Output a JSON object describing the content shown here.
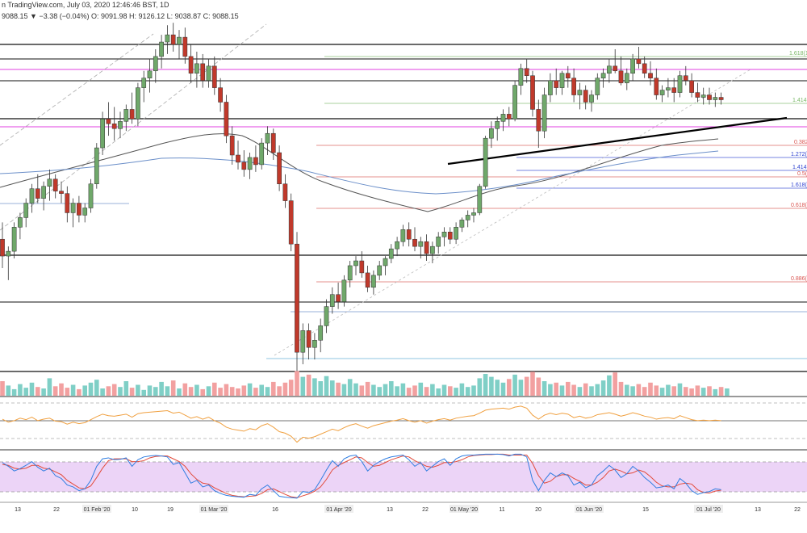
{
  "header": {
    "source_text": "n TradingView.com, July 03, 2020 12:46:46 BST",
    "interval": ", 1D",
    "ohlc_text": "9088.15 ",
    "change_text": "▼ −3.38 (−0.04%)",
    "o_text": " O: 9091.98",
    "h_text": " H: 9126.12",
    "l_text": " L: 9038.87",
    "c_text": " C: 9088.15"
  },
  "colors": {
    "up": "#6fa86a",
    "down": "#c0392b",
    "vol_up": "#7fcfc6",
    "vol_down": "#f2a0a0",
    "black_line": "#111111",
    "magenta_line": "#e040e0",
    "fib_red": "#d9534f",
    "fib_blue": "#2b3fcf",
    "fib_green": "#7ab867",
    "sma_gray": "#555555",
    "sma_blue": "#6b8fc9",
    "rsi": "#f0a040",
    "stoch_k": "#2f7de1",
    "stoch_d": "#e24b3b",
    "stoch_band": "#e7c9f5"
  },
  "chart_data": [
    {
      "type": "candlestick",
      "title": "",
      "x_labels": [
        "13",
        "22",
        "01 Feb '20",
        "10",
        "19",
        "01 Mar '20",
        "16",
        "01 Apr '20",
        "13",
        "22",
        "01 May '20",
        "11",
        "20",
        "01 Jun '20",
        "15",
        "01 Jul '20",
        "13",
        "22"
      ],
      "fib_labels_upper": [
        "1.618(1",
        "1.414("
      ],
      "fib_labels_right": [
        "0.382(",
        "1.272(",
        "1.414(",
        "0.5(",
        "1.618(",
        "0.618(",
        "0.886("
      ],
      "candles": [
        [
          0.55,
          0.62,
          0.43,
          0.48
        ],
        [
          0.48,
          0.52,
          0.38,
          0.5
        ],
        [
          0.5,
          0.62,
          0.47,
          0.6
        ],
        [
          0.6,
          0.66,
          0.55,
          0.64
        ],
        [
          0.64,
          0.72,
          0.6,
          0.7
        ],
        [
          0.7,
          0.78,
          0.66,
          0.76
        ],
        [
          0.76,
          0.82,
          0.7,
          0.72
        ],
        [
          0.72,
          0.79,
          0.67,
          0.77
        ],
        [
          0.77,
          0.84,
          0.71,
          0.8
        ],
        [
          0.8,
          0.82,
          0.72,
          0.75
        ],
        [
          0.75,
          0.79,
          0.7,
          0.74
        ],
        [
          0.74,
          0.77,
          0.62,
          0.66
        ],
        [
          0.66,
          0.72,
          0.6,
          0.7
        ],
        [
          0.7,
          0.73,
          0.62,
          0.65
        ],
        [
          0.65,
          0.7,
          0.62,
          0.68
        ],
        [
          0.68,
          0.8,
          0.66,
          0.78
        ],
        [
          0.78,
          0.95,
          0.76,
          0.93
        ],
        [
          0.93,
          1.08,
          0.9,
          1.05
        ],
        [
          1.05,
          1.12,
          0.98,
          1.03
        ],
        [
          1.03,
          1.1,
          0.96,
          1.01
        ],
        [
          1.01,
          1.08,
          0.97,
          1.04
        ],
        [
          1.04,
          1.11,
          1.0,
          1.09
        ],
        [
          1.09,
          1.16,
          1.03,
          1.05
        ],
        [
          1.05,
          1.2,
          1.02,
          1.18
        ],
        [
          1.18,
          1.25,
          1.12,
          1.22
        ],
        [
          1.22,
          1.3,
          1.16,
          1.25
        ],
        [
          1.25,
          1.34,
          1.2,
          1.31
        ],
        [
          1.31,
          1.4,
          1.26,
          1.37
        ],
        [
          1.37,
          1.44,
          1.32,
          1.4
        ],
        [
          1.4,
          1.45,
          1.33,
          1.36
        ],
        [
          1.36,
          1.42,
          1.3,
          1.39
        ],
        [
          1.39,
          1.43,
          1.28,
          1.31
        ],
        [
          1.31,
          1.36,
          1.2,
          1.24
        ],
        [
          1.24,
          1.33,
          1.18,
          1.28
        ],
        [
          1.28,
          1.32,
          1.18,
          1.21
        ],
        [
          1.21,
          1.3,
          1.18,
          1.27
        ],
        [
          1.27,
          1.31,
          1.15,
          1.18
        ],
        [
          1.18,
          1.22,
          1.08,
          1.12
        ],
        [
          1.12,
          1.15,
          0.95,
          0.98
        ],
        [
          0.98,
          1.02,
          0.86,
          0.9
        ],
        [
          0.9,
          0.96,
          0.84,
          0.87
        ],
        [
          0.87,
          0.92,
          0.81,
          0.84
        ],
        [
          0.84,
          0.91,
          0.8,
          0.89
        ],
        [
          0.89,
          0.94,
          0.83,
          0.86
        ],
        [
          0.86,
          0.97,
          0.84,
          0.95
        ],
        [
          0.95,
          1.02,
          0.9,
          0.99
        ],
        [
          0.99,
          1.01,
          0.88,
          0.91
        ],
        [
          0.91,
          0.94,
          0.75,
          0.78
        ],
        [
          0.78,
          0.82,
          0.68,
          0.71
        ],
        [
          0.71,
          0.74,
          0.5,
          0.53
        ],
        [
          0.53,
          0.58,
          0.0,
          0.08
        ],
        [
          0.08,
          0.2,
          0.03,
          0.17
        ],
        [
          0.17,
          0.2,
          0.05,
          0.1
        ],
        [
          0.1,
          0.16,
          0.05,
          0.13
        ],
        [
          0.13,
          0.22,
          0.08,
          0.19
        ],
        [
          0.19,
          0.3,
          0.16,
          0.27
        ],
        [
          0.27,
          0.35,
          0.24,
          0.32
        ],
        [
          0.32,
          0.37,
          0.26,
          0.29
        ],
        [
          0.29,
          0.4,
          0.27,
          0.38
        ],
        [
          0.38,
          0.46,
          0.35,
          0.44
        ],
        [
          0.44,
          0.48,
          0.4,
          0.46
        ],
        [
          0.46,
          0.5,
          0.39,
          0.41
        ],
        [
          0.41,
          0.44,
          0.33,
          0.35
        ],
        [
          0.35,
          0.42,
          0.32,
          0.4
        ],
        [
          0.4,
          0.46,
          0.38,
          0.44
        ],
        [
          0.44,
          0.48,
          0.4,
          0.47
        ],
        [
          0.47,
          0.53,
          0.45,
          0.51
        ],
        [
          0.51,
          0.56,
          0.48,
          0.54
        ],
        [
          0.54,
          0.61,
          0.52,
          0.59
        ],
        [
          0.59,
          0.62,
          0.52,
          0.55
        ],
        [
          0.55,
          0.6,
          0.5,
          0.52
        ],
        [
          0.52,
          0.56,
          0.47,
          0.54
        ],
        [
          0.54,
          0.57,
          0.46,
          0.49
        ],
        [
          0.49,
          0.54,
          0.45,
          0.52
        ],
        [
          0.52,
          0.58,
          0.49,
          0.56
        ],
        [
          0.56,
          0.6,
          0.52,
          0.58
        ],
        [
          0.58,
          0.6,
          0.53,
          0.55
        ],
        [
          0.55,
          0.62,
          0.53,
          0.6
        ],
        [
          0.6,
          0.64,
          0.58,
          0.63
        ],
        [
          0.63,
          0.67,
          0.6,
          0.65
        ],
        [
          0.65,
          0.68,
          0.62,
          0.66
        ],
        [
          0.66,
          0.78,
          0.65,
          0.77
        ],
        [
          0.77,
          0.98,
          0.76,
          0.97
        ],
        [
          0.97,
          1.04,
          0.93,
          1.01
        ],
        [
          1.01,
          1.06,
          0.96,
          1.04
        ],
        [
          1.04,
          1.09,
          1.0,
          1.07
        ],
        [
          1.07,
          1.1,
          1.02,
          1.05
        ],
        [
          1.05,
          1.21,
          1.04,
          1.19
        ],
        [
          1.19,
          1.28,
          1.15,
          1.26
        ],
        [
          1.26,
          1.3,
          1.2,
          1.23
        ],
        [
          1.23,
          1.25,
          1.06,
          1.09
        ],
        [
          1.09,
          1.13,
          0.93,
          1.0
        ],
        [
          1.0,
          1.18,
          0.97,
          1.15
        ],
        [
          1.15,
          1.24,
          1.12,
          1.21
        ],
        [
          1.21,
          1.26,
          1.15,
          1.18
        ],
        [
          1.18,
          1.25,
          1.15,
          1.24
        ],
        [
          1.24,
          1.27,
          1.18,
          1.22
        ],
        [
          1.22,
          1.26,
          1.12,
          1.15
        ],
        [
          1.15,
          1.2,
          1.09,
          1.17
        ],
        [
          1.17,
          1.19,
          1.09,
          1.12
        ],
        [
          1.12,
          1.17,
          1.08,
          1.15
        ],
        [
          1.15,
          1.24,
          1.13,
          1.22
        ],
        [
          1.22,
          1.26,
          1.18,
          1.24
        ],
        [
          1.24,
          1.3,
          1.2,
          1.27
        ],
        [
          1.27,
          1.34,
          1.24,
          1.25
        ],
        [
          1.25,
          1.31,
          1.19,
          1.2
        ],
        [
          1.2,
          1.26,
          1.17,
          1.24
        ],
        [
          1.24,
          1.32,
          1.21,
          1.3
        ],
        [
          1.3,
          1.35,
          1.26,
          1.28
        ],
        [
          1.28,
          1.31,
          1.22,
          1.24
        ],
        [
          1.24,
          1.29,
          1.19,
          1.22
        ],
        [
          1.22,
          1.26,
          1.13,
          1.15
        ],
        [
          1.15,
          1.19,
          1.12,
          1.17
        ],
        [
          1.17,
          1.22,
          1.14,
          1.18
        ],
        [
          1.18,
          1.22,
          1.12,
          1.16
        ],
        [
          1.16,
          1.25,
          1.14,
          1.23
        ],
        [
          1.23,
          1.27,
          1.19,
          1.21
        ],
        [
          1.21,
          1.24,
          1.14,
          1.16
        ],
        [
          1.16,
          1.2,
          1.12,
          1.14
        ],
        [
          1.14,
          1.18,
          1.11,
          1.15
        ],
        [
          1.15,
          1.18,
          1.11,
          1.13
        ],
        [
          1.13,
          1.16,
          1.1,
          1.14
        ],
        [
          1.14,
          1.16,
          1.11,
          1.13
        ]
      ],
      "volumes": [
        2.0,
        1.4,
        0.9,
        1.6,
        1.1,
        1.8,
        1.2,
        1.0,
        2.4,
        1.3,
        1.7,
        1.1,
        1.5,
        0.9,
        1.4,
        1.8,
        2.2,
        1.0,
        1.3,
        1.6,
        1.2,
        2.0,
        1.1,
        1.5,
        0.8,
        1.4,
        1.2,
        1.9,
        1.3,
        2.1,
        1.0,
        1.7,
        1.2,
        1.5,
        0.9,
        1.3,
        1.8,
        1.1,
        1.6,
        1.2,
        1.0,
        1.4,
        1.7,
        1.1,
        1.5,
        1.2,
        1.9,
        1.3,
        1.8,
        2.2,
        3.4,
        2.6,
        2.9,
        2.4,
        2.0,
        2.7,
        2.1,
        1.8,
        1.6,
        2.3,
        1.7,
        1.4,
        1.9,
        1.5,
        1.2,
        1.6,
        2.0,
        1.3,
        1.7,
        1.1,
        1.4,
        1.8,
        1.2,
        1.6,
        1.0,
        1.5,
        1.3,
        1.1,
        1.7,
        1.2,
        1.4,
        2.4,
        3.0,
        2.6,
        2.2,
        1.8,
        2.3,
        2.9,
        2.2,
        2.6,
        3.3,
        2.5,
        2.0,
        1.6,
        1.8,
        1.4,
        1.9,
        1.5,
        1.2,
        1.7,
        1.3,
        1.6,
        2.1,
        2.8,
        3.2,
        1.9,
        1.5,
        1.3,
        1.6,
        1.2,
        1.8,
        1.4,
        1.1,
        1.5,
        1.3,
        1.7,
        1.2,
        1.0,
        1.4,
        1.1,
        1.3,
        0.9,
        1.2,
        1.0
      ],
      "rsi": [
        58,
        52,
        55,
        60,
        57,
        62,
        55,
        58,
        60,
        54,
        53,
        48,
        52,
        49,
        51,
        57,
        63,
        68,
        65,
        64,
        66,
        68,
        62,
        69,
        71,
        72,
        73,
        74,
        75,
        70,
        72,
        66,
        60,
        63,
        58,
        62,
        55,
        50,
        42,
        38,
        36,
        34,
        39,
        37,
        45,
        49,
        42,
        33,
        30,
        24,
        12,
        22,
        20,
        23,
        28,
        33,
        38,
        35,
        41,
        46,
        49,
        44,
        40,
        45,
        48,
        51,
        54,
        56,
        59,
        55,
        52,
        55,
        50,
        54,
        57,
        59,
        56,
        60,
        62,
        64,
        65,
        70,
        76,
        78,
        79,
        80,
        78,
        82,
        84,
        80,
        66,
        58,
        66,
        70,
        67,
        70,
        68,
        61,
        64,
        60,
        62,
        67,
        69,
        71,
        68,
        64,
        67,
        71,
        68,
        64,
        62,
        58,
        60,
        61,
        59,
        65,
        61,
        57,
        55,
        56,
        55,
        56,
        55
      ],
      "stoch_k": [
        78,
        70,
        60,
        65,
        72,
        80,
        68,
        60,
        66,
        50,
        44,
        30,
        26,
        18,
        22,
        40,
        70,
        86,
        88,
        84,
        85,
        88,
        70,
        84,
        90,
        92,
        93,
        92,
        90,
        74,
        78,
        56,
        34,
        40,
        26,
        30,
        18,
        12,
        8,
        6,
        5,
        4,
        10,
        8,
        22,
        30,
        18,
        6,
        4,
        3,
        2,
        16,
        14,
        20,
        40,
        62,
        82,
        70,
        86,
        92,
        94,
        80,
        60,
        72,
        80,
        86,
        90,
        92,
        94,
        84,
        70,
        78,
        60,
        70,
        80,
        86,
        72,
        86,
        92,
        94,
        94,
        95,
        96,
        96,
        96,
        95,
        92,
        96,
        96,
        90,
        40,
        18,
        40,
        56,
        48,
        56,
        50,
        30,
        36,
        24,
        30,
        50,
        60,
        72,
        62,
        46,
        54,
        70,
        60,
        46,
        36,
        24,
        26,
        30,
        22,
        44,
        34,
        18,
        10,
        14,
        16,
        22,
        20
      ],
      "stoch_d": [
        74,
        72,
        66,
        64,
        66,
        72,
        72,
        66,
        64,
        58,
        52,
        40,
        32,
        24,
        22,
        28,
        46,
        66,
        82,
        86,
        86,
        86,
        80,
        80,
        82,
        88,
        91,
        92,
        92,
        86,
        80,
        70,
        54,
        42,
        34,
        32,
        24,
        18,
        12,
        8,
        6,
        5,
        6,
        7,
        12,
        20,
        22,
        16,
        10,
        5,
        3,
        7,
        11,
        17,
        26,
        42,
        62,
        72,
        78,
        84,
        90,
        88,
        78,
        70,
        72,
        78,
        84,
        88,
        92,
        90,
        82,
        76,
        70,
        68,
        72,
        78,
        78,
        80,
        84,
        90,
        93,
        94,
        95,
        95,
        96,
        96,
        94,
        94,
        94,
        94,
        76,
        50,
        34,
        38,
        48,
        52,
        52,
        44,
        38,
        30,
        30,
        36,
        46,
        60,
        64,
        60,
        54,
        56,
        62,
        58,
        48,
        36,
        28,
        26,
        26,
        32,
        34,
        32,
        20,
        14,
        13,
        17,
        19
      ]
    }
  ]
}
